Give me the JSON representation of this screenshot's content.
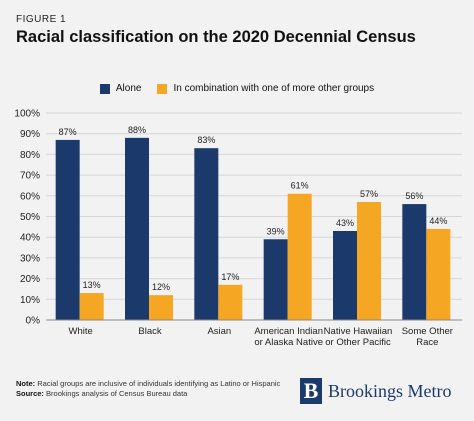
{
  "figure_label": "FIGURE 1",
  "title": "Racial classification on the 2020 Decennial Census",
  "chart_data": {
    "type": "bar",
    "categories": [
      [
        "White"
      ],
      [
        "Black"
      ],
      [
        "Asian"
      ],
      [
        "American Indian",
        "or Alaska Native"
      ],
      [
        "Native Hawaiian",
        "or Other Pacific"
      ],
      [
        "Some Other",
        "Race"
      ]
    ],
    "series": [
      {
        "name": "Alone",
        "color": "#1b3a6b",
        "values": [
          87,
          88,
          83,
          39,
          43,
          56
        ]
      },
      {
        "name": "In combination with one of more other groups",
        "color": "#f5a623",
        "values": [
          13,
          12,
          17,
          61,
          57,
          44
        ]
      }
    ],
    "data_labels": [
      [
        "87%",
        "88%",
        "83%",
        "39%",
        "43%",
        "56%"
      ],
      [
        "13%",
        "12%",
        "17%",
        "61%",
        "57%",
        "44%"
      ]
    ],
    "y_ticks": [
      "0%",
      "10%",
      "20%",
      "30%",
      "40%",
      "50%",
      "60%",
      "70%",
      "80%",
      "90%",
      "100%"
    ],
    "ylim": [
      0,
      100
    ],
    "grid": true,
    "legend_position": "top-center"
  },
  "footer": {
    "note_label": "Note:",
    "note_text": " Racial groups are inclusive of individuals identifying as Latino or Hispanic",
    "source_label": "Source:",
    "source_text": " Brookings analysis of Census Bureau data"
  },
  "brand": {
    "mark": "B",
    "name": "Brookings Metro"
  }
}
